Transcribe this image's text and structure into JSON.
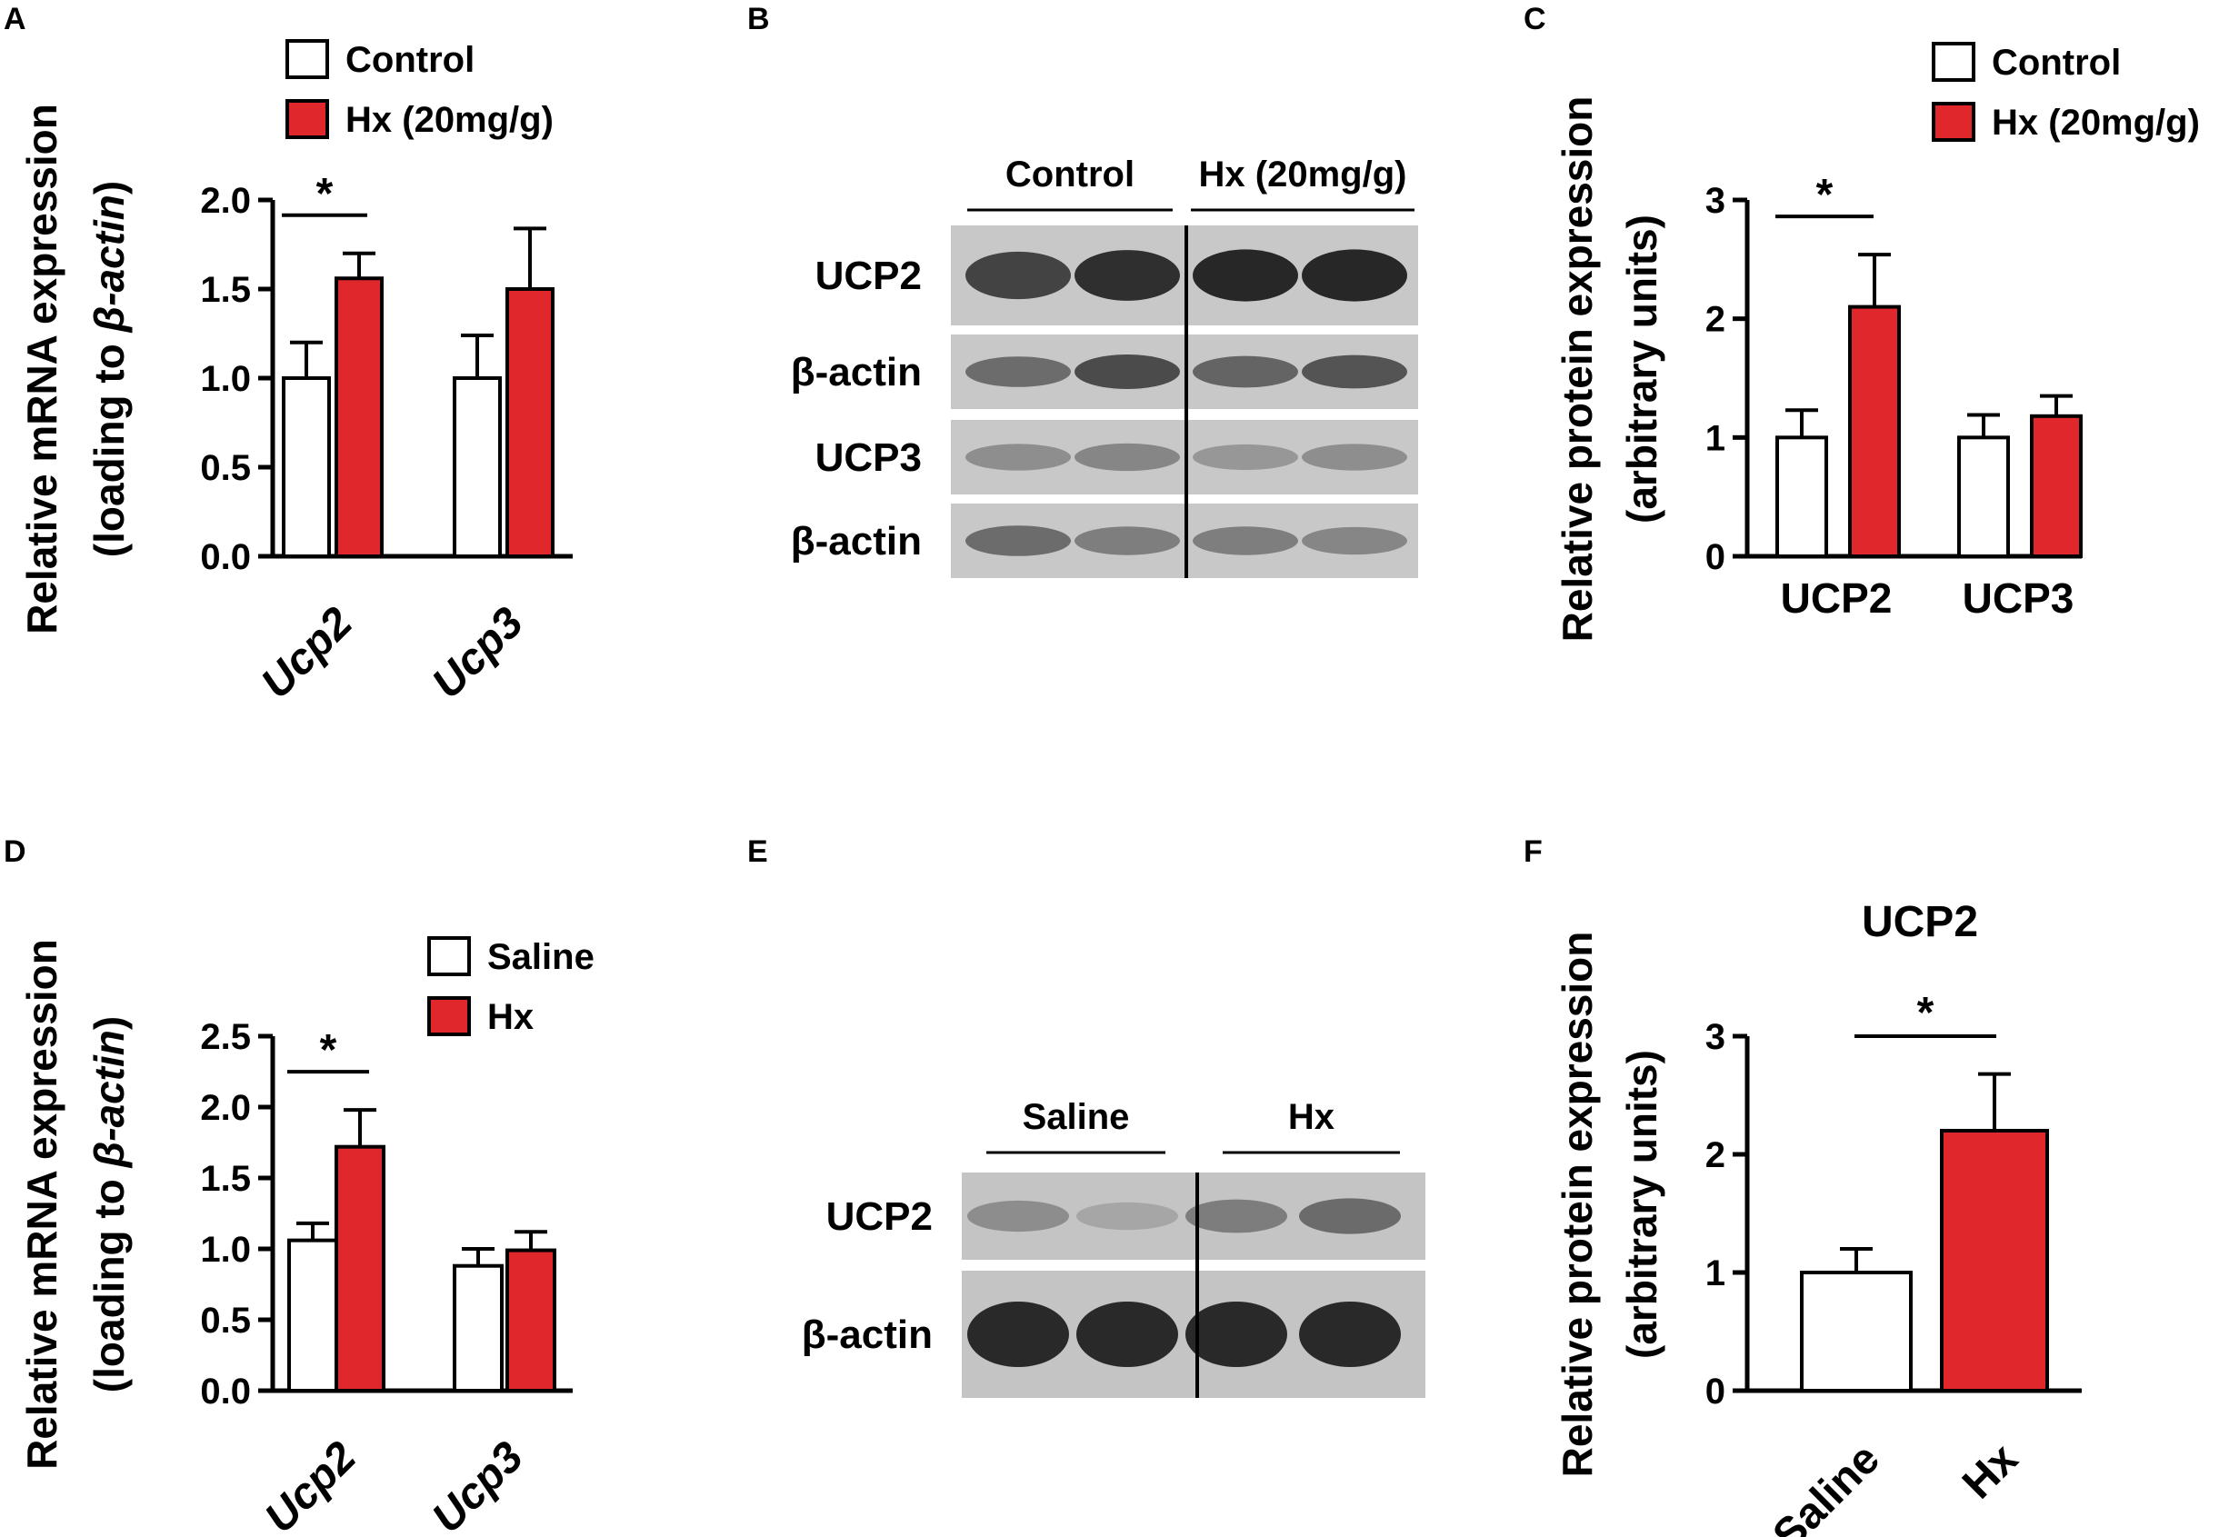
{
  "colors": {
    "control": "#ffffff",
    "treated": "#e0272b",
    "stroke": "#000000"
  },
  "chart_data": [
    {
      "panel": "A",
      "type": "bar",
      "ylabel_line1": "Relative mRNA expression",
      "ylabel_line2_prefix": "(loading to ",
      "ylabel_line2_italic": "β-actin",
      "ylabel_line2_suffix": ")",
      "ylim": [
        0,
        2.0
      ],
      "yticks": [
        "0.0",
        "0.5",
        "1.0",
        "1.5",
        "2.0"
      ],
      "categories": [
        "Ucp2",
        "Ucp3"
      ],
      "categories_italic": true,
      "series": [
        {
          "name": "Control",
          "values": [
            1.0,
            1.0
          ],
          "errors": [
            0.2,
            0.24
          ]
        },
        {
          "name": "Hx (20mg/g)",
          "values": [
            1.56,
            1.5
          ],
          "errors": [
            0.14,
            0.34
          ]
        }
      ],
      "significance": [
        {
          "category": "Ucp2",
          "label": "*"
        }
      ],
      "legend": "top-right"
    },
    {
      "panel": "C",
      "type": "bar",
      "ylabel_line1": "Relative protein expression",
      "ylabel_line2": "(arbitrary units)",
      "ylim": [
        0,
        3
      ],
      "yticks": [
        "0",
        "1",
        "2",
        "3"
      ],
      "categories": [
        "UCP2",
        "UCP3"
      ],
      "categories_italic": false,
      "series": [
        {
          "name": "Control",
          "values": [
            1.0,
            1.0
          ],
          "errors": [
            0.23,
            0.19
          ]
        },
        {
          "name": "Hx (20mg/g)",
          "values": [
            2.1,
            1.18
          ],
          "errors": [
            0.44,
            0.17
          ]
        }
      ],
      "significance": [
        {
          "category": "UCP2",
          "label": "*"
        }
      ],
      "legend": "top-right"
    },
    {
      "panel": "D",
      "type": "bar",
      "ylabel_line1": "Relative mRNA expression",
      "ylabel_line2_prefix": "(loading to ",
      "ylabel_line2_italic": "β-actin",
      "ylabel_line2_suffix": ")",
      "ylim": [
        0,
        2.5
      ],
      "yticks": [
        "0.0",
        "0.5",
        "1.0",
        "1.5",
        "2.0",
        "2.5"
      ],
      "categories": [
        "Ucp2",
        "Ucp3"
      ],
      "categories_italic": true,
      "series": [
        {
          "name": "Saline",
          "values": [
            1.06,
            0.88
          ],
          "errors": [
            0.12,
            0.12
          ]
        },
        {
          "name": "Hx",
          "values": [
            1.72,
            0.99
          ],
          "errors": [
            0.26,
            0.13
          ]
        }
      ],
      "significance": [
        {
          "category": "Ucp2",
          "label": "*"
        }
      ],
      "legend": "top-right"
    },
    {
      "panel": "F",
      "type": "bar",
      "title": "UCP2",
      "ylabel_line1": "Relative protein expression",
      "ylabel_line2": "(arbitrary units)",
      "ylim": [
        0,
        3
      ],
      "yticks": [
        "0",
        "1",
        "2",
        "3"
      ],
      "categories": [
        "Saline",
        "Hx"
      ],
      "categories_italic": false,
      "values": [
        1.0,
        2.2
      ],
      "errors": [
        0.2,
        0.48
      ],
      "significance": [
        {
          "between": [
            "Saline",
            "Hx"
          ],
          "label": "*"
        }
      ]
    }
  ],
  "blots": {
    "B": {
      "groups": [
        "Control",
        "Hx (20mg/g)"
      ],
      "rows": [
        "UCP2",
        "β-actin",
        "UCP3",
        "β-actin"
      ],
      "band_intensity": [
        [
          0.8,
          0.92,
          0.97,
          0.97
        ],
        [
          0.55,
          0.75,
          0.6,
          0.7
        ],
        [
          0.35,
          0.4,
          0.3,
          0.35
        ],
        [
          0.55,
          0.45,
          0.45,
          0.4
        ]
      ]
    },
    "E": {
      "groups": [
        "Saline",
        "Hx"
      ],
      "rows": [
        "UCP2",
        "β-actin"
      ],
      "band_intensity": [
        [
          0.35,
          0.2,
          0.45,
          0.55
        ],
        [
          0.95,
          0.95,
          0.95,
          0.95
        ]
      ]
    }
  },
  "panel_letters": [
    "A",
    "B",
    "C",
    "D",
    "E",
    "F"
  ]
}
